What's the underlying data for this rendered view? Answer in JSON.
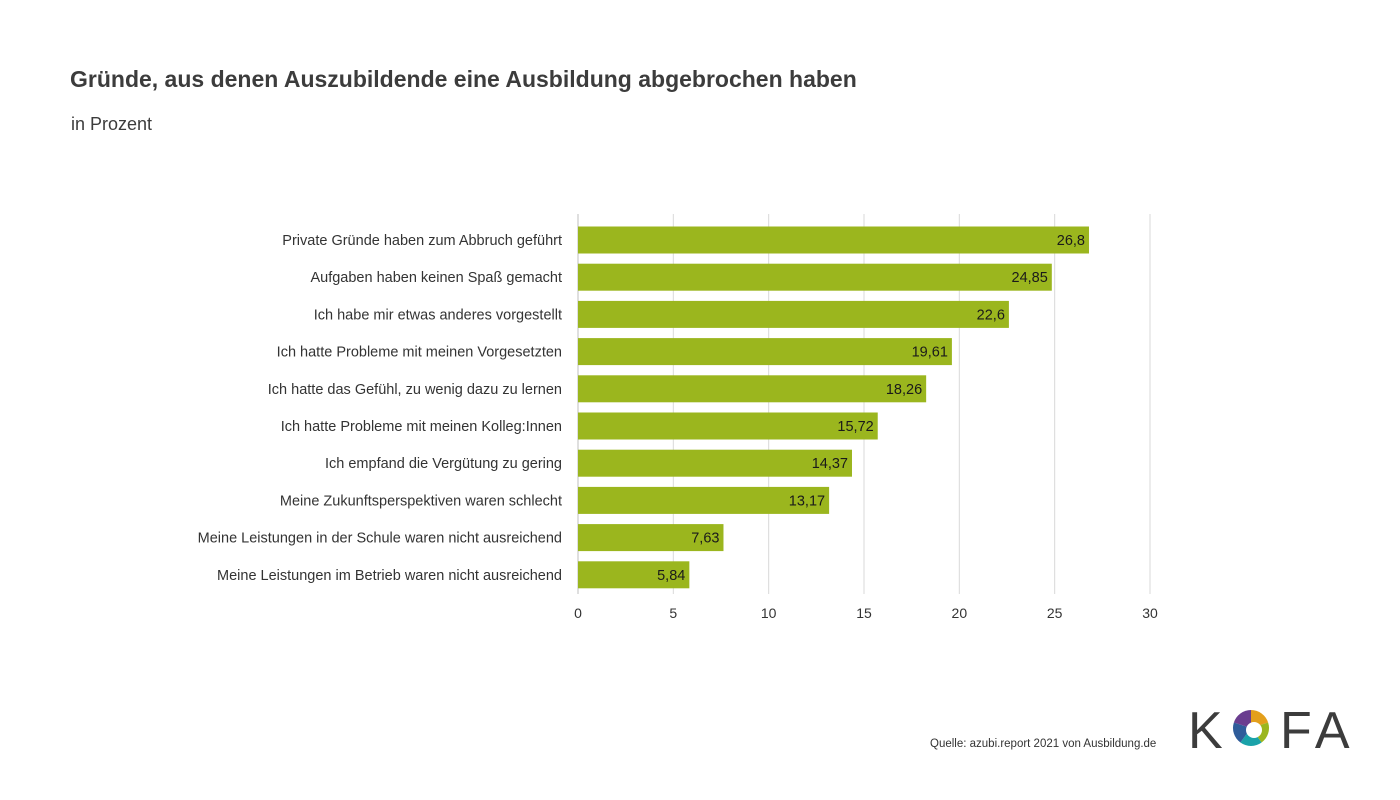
{
  "chart_data": {
    "type": "bar",
    "orientation": "horizontal",
    "title": "Gründe, aus denen Auszubildende eine Ausbildung abgebrochen haben",
    "subtitle": "in Prozent",
    "categories": [
      "Private Gründe haben zum Abbruch geführt",
      "Aufgaben haben keinen Spaß gemacht",
      "Ich habe mir etwas anderes vorgestellt",
      "Ich hatte Probleme mit meinen Vorgesetzten",
      "Ich hatte das Gefühl, zu wenig dazu zu lernen",
      "Ich hatte Probleme mit meinen Kolleg:Innen",
      "Ich empfand die Vergütung zu gering",
      "Meine Zukunftsperspektiven waren schlecht",
      "Meine Leistungen in der Schule waren nicht ausreichend",
      "Meine Leistungen im Betrieb waren nicht ausreichend"
    ],
    "values": [
      26.8,
      24.85,
      22.6,
      19.61,
      18.26,
      15.72,
      14.37,
      13.17,
      7.63,
      5.84
    ],
    "value_labels": [
      "26,8",
      "24,85",
      "22,6",
      "19,61",
      "18,26",
      "15,72",
      "14,37",
      "13,17",
      "7,63",
      "5,84"
    ],
    "xlim": [
      0,
      30
    ],
    "xticks": [
      0,
      5,
      10,
      15,
      20,
      25,
      30
    ],
    "xlabel": "",
    "ylabel": "",
    "grid": true,
    "bar_color": "#9bb61e",
    "grid_color": "#d9d9d9"
  },
  "source": "Quelle: azubi.report 2021 von Ausbildung.de",
  "logo": {
    "text_left": "K",
    "text_right": "FA",
    "icon": "kofa-ring-logo",
    "colors": [
      "#e39f1c",
      "#9bb61e",
      "#1aa2a9",
      "#2f5c9a",
      "#6a3d8f"
    ]
  }
}
